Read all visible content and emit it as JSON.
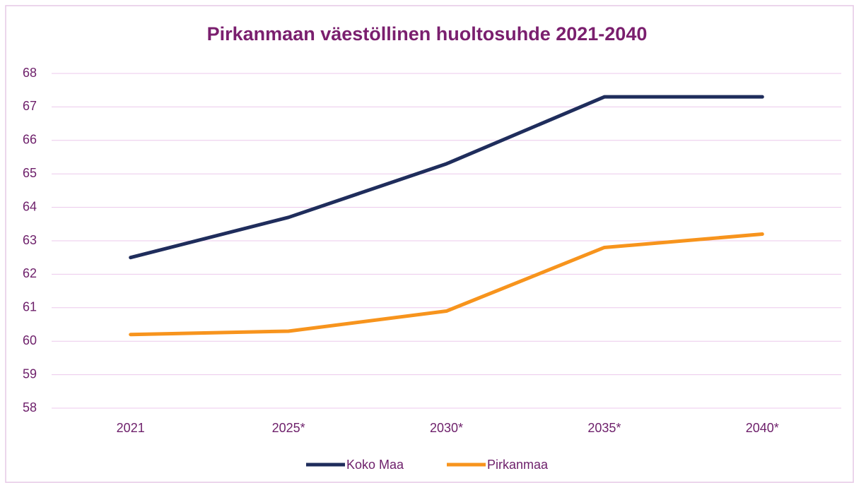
{
  "chart_data": {
    "type": "line",
    "title": "Pirkanmaan väestöllinen huoltosuhde 2021-2040",
    "categories": [
      "2021",
      "2025*",
      "2030*",
      "2035*",
      "2040*"
    ],
    "series": [
      {
        "name": "Koko Maa",
        "color": "#1f2d5c",
        "values": [
          62.5,
          63.7,
          65.3,
          67.3,
          67.3
        ]
      },
      {
        "name": "Pirkanmaa",
        "color": "#f7941d",
        "values": [
          60.2,
          60.3,
          60.9,
          62.8,
          63.2
        ]
      }
    ],
    "ylim": [
      58,
      68
    ],
    "yticks": [
      58,
      59,
      60,
      61,
      62,
      63,
      64,
      65,
      66,
      67,
      68
    ],
    "grid": true,
    "legend": "bottom"
  }
}
